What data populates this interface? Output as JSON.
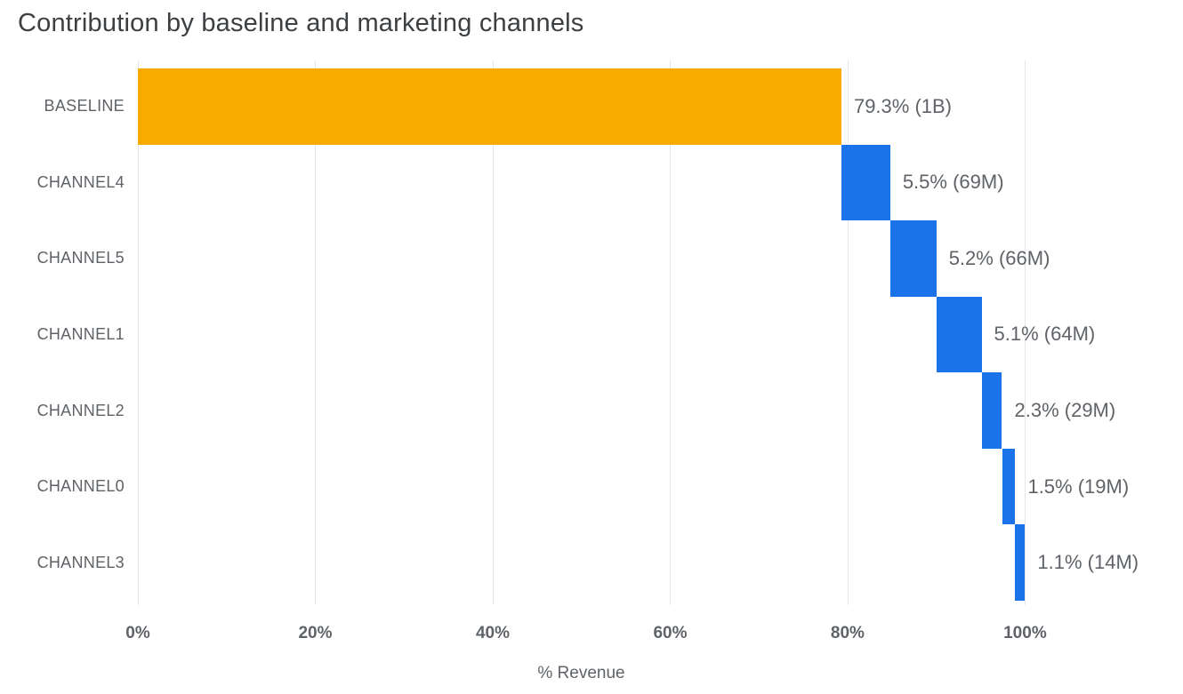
{
  "title": "Contribution by baseline and marketing channels",
  "chart_data": {
    "type": "bar",
    "subtype": "horizontal-waterfall",
    "title": "Contribution by baseline and marketing channels",
    "xlabel": "% Revenue",
    "ylabel": "",
    "categories": [
      "BASELINE",
      "CHANNEL4",
      "CHANNEL5",
      "CHANNEL1",
      "CHANNEL2",
      "CHANNEL0",
      "CHANNEL3"
    ],
    "values": [
      79.3,
      5.5,
      5.2,
      5.1,
      2.3,
      1.5,
      1.1
    ],
    "starts": [
      0,
      79.3,
      84.8,
      90.0,
      95.1,
      97.4,
      98.9
    ],
    "value_labels": [
      "79.3% (1B)",
      "5.5% (69M)",
      "5.2% (66M)",
      "5.1% (64M)",
      "2.3% (29M)",
      "1.5% (19M)",
      "1.1% (14M)"
    ],
    "bar_colors": [
      "#F9AB00",
      "#1A73E8",
      "#1A73E8",
      "#1A73E8",
      "#1A73E8",
      "#1A73E8",
      "#1A73E8"
    ],
    "x_ticks": [
      "0%",
      "20%",
      "40%",
      "60%",
      "80%",
      "100%"
    ],
    "x_tick_values": [
      0,
      20,
      40,
      60,
      80,
      100
    ],
    "xlim": [
      0,
      117
    ],
    "grid": true,
    "legend": "none",
    "colors": {
      "baseline_bar": "#F9AB00",
      "channel_bar": "#1A73E8",
      "title_text": "#3c4043",
      "axis_text": "#5f6368",
      "gridline": "#e4e7ea"
    }
  }
}
